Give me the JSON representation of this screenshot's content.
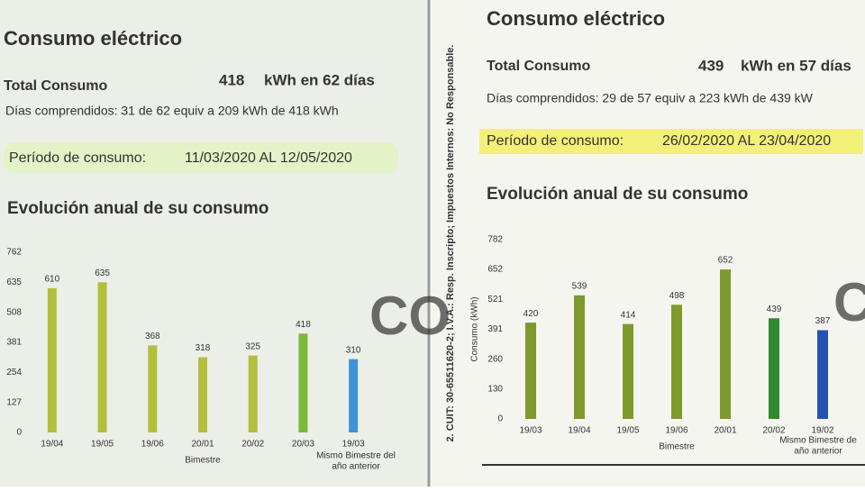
{
  "panels": [
    {
      "title": "Consumo eléctrico",
      "total_label": "Total Consumo",
      "total_value": "418",
      "total_unit": "kWh en 62 días",
      "days_line": "Días comprendidos: 31 de 62 equiv a 209 kWh de 418 kWh",
      "period_label": "Período de consumo:",
      "period_value": "11/03/2020 AL 12/05/2020",
      "stamp": "CO"
    },
    {
      "title": "Consumo eléctrico",
      "total_label": "Total Consumo",
      "total_value": "439",
      "total_unit": "kWh en 57 días",
      "days_line": "Días comprendidos: 29 de 57 equiv a 223 kWh de 439 kW",
      "period_label": "Período de consumo:",
      "period_value": "26/02/2020 AL 23/04/2020",
      "stamp": "C",
      "side_text": "2. CUIT: 30-65511620-2; I.V.A.: Resp. Inscripto; Impuestos Internos: No Responsable."
    }
  ],
  "chart_data": [
    {
      "type": "bar",
      "title": "Evolución anual de su consumo",
      "x_label": "Bimestre",
      "x_note": [
        "Mismo Bimestre del",
        "año anterior"
      ],
      "categories": [
        "19/04",
        "19/05",
        "19/06",
        "20/01",
        "20/02",
        "20/03",
        "19/03"
      ],
      "values": [
        610,
        635,
        368,
        318,
        325,
        418,
        310
      ],
      "colors": [
        "#b3bf3c",
        "#b3bf3c",
        "#b3bf3c",
        "#b3bf3c",
        "#b3bf3c",
        "#7cb83a",
        "#3d93d8"
      ],
      "ylim": [
        0,
        762
      ],
      "yticks": [
        0,
        127,
        254,
        381,
        508,
        635,
        762
      ]
    },
    {
      "type": "bar",
      "title": "Evolución anual de su consumo",
      "x_label": "Bimestre",
      "y_label": "Consumo (kWh)",
      "x_note": [
        "Mismo Bimestre de",
        "año anterior"
      ],
      "categories": [
        "19/03",
        "19/04",
        "19/05",
        "19/06",
        "20/01",
        "20/02",
        "19/02"
      ],
      "values": [
        420,
        539,
        414,
        498,
        652,
        439,
        387
      ],
      "colors": [
        "#7f9a2c",
        "#7f9a2c",
        "#7f9a2c",
        "#7f9a2c",
        "#7f9a2c",
        "#2f8a2f",
        "#2452b4"
      ],
      "ylim": [
        0,
        782
      ],
      "yticks": [
        0,
        130,
        260,
        391,
        521,
        652,
        782
      ]
    }
  ]
}
